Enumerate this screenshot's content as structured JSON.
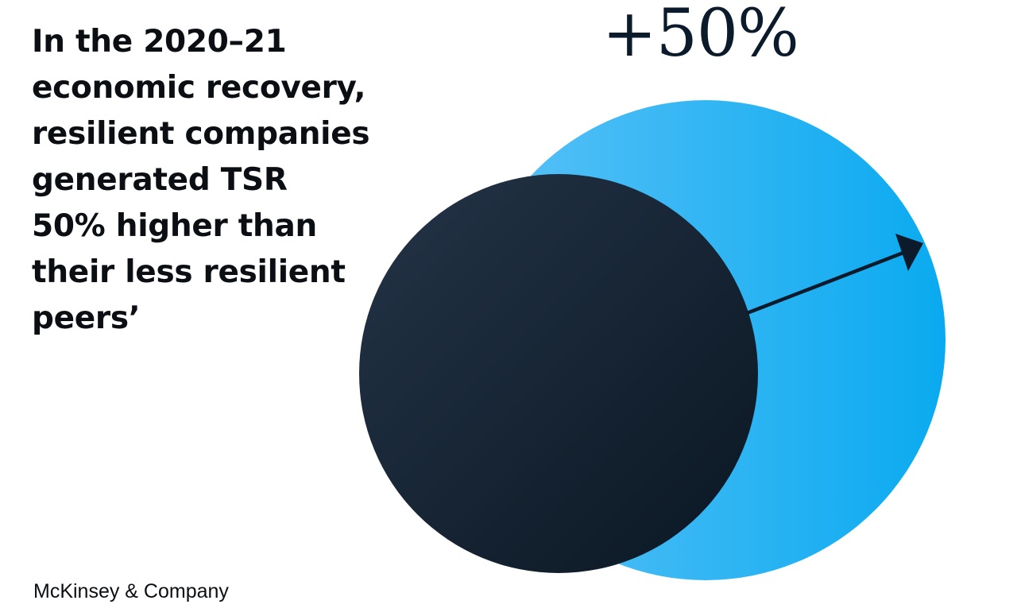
{
  "headline": {
    "lines": [
      "In the 2020–21",
      "economic recovery,",
      "resilient companies",
      "generated TSR",
      "50% higher than",
      "their less resilient",
      "peers’"
    ]
  },
  "stat": {
    "value": "+50%"
  },
  "diagram": {
    "outer_circle_color_light": "#5cc2f7",
    "outer_circle_color_dark": "#0aaaf0",
    "inner_circle_color_light": "#243447",
    "inner_circle_color_dark": "#0a1622",
    "arrow_color": "#0b1b2b"
  },
  "footer": {
    "brand": "McKinsey & Company"
  }
}
